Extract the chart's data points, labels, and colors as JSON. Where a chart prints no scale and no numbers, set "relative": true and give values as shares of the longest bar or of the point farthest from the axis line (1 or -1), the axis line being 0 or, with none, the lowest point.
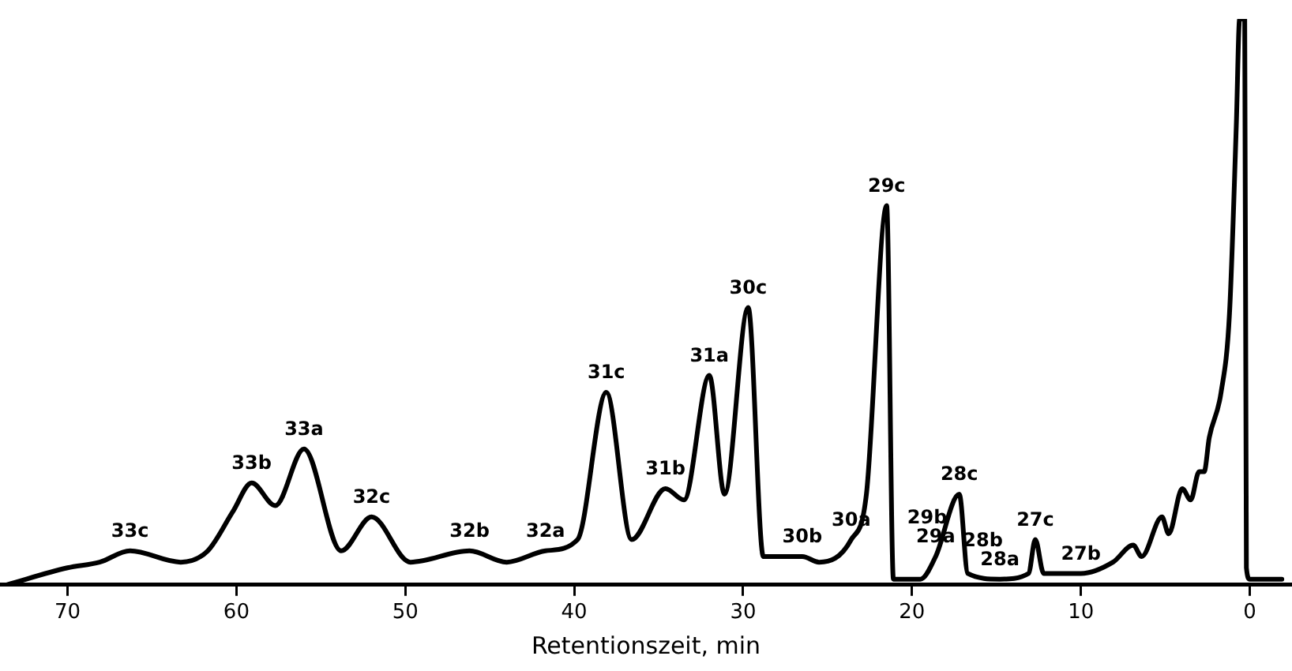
{
  "chart_data": {
    "type": "line",
    "relative": true,
    "xlabel": "Retentionszeit, min",
    "xlim": [
      74,
      -2.5
    ],
    "xticks": [
      70,
      60,
      50,
      40,
      30,
      20,
      10,
      0
    ],
    "grid": false,
    "legend": false,
    "marker": "none",
    "line_style": "solid",
    "series": [
      {
        "color": "#000000",
        "x": [
          73.6,
          70,
          68.1,
          66.3,
          63.3,
          61.7,
          60.2,
          59.1,
          57.7,
          56.0,
          53.8,
          52.0,
          49.7,
          46.2,
          44.0,
          41.7,
          39.8,
          38.1,
          36.6,
          34.6,
          33.5,
          32.0,
          31.1,
          29.7,
          28.8,
          26.5,
          25.5,
          23.6,
          22.7,
          21.5,
          21.1,
          19.5,
          18.6,
          17.2,
          16.7,
          14.8,
          13.1,
          12.7,
          12.2,
          10.0,
          8.1,
          6.9,
          6.4,
          5.2,
          4.8,
          4.0,
          3.5,
          3.0,
          2.7,
          2.4,
          1.7,
          1.2,
          0.8,
          0.6,
          0.3,
          0.2,
          0.0,
          -1.9
        ],
        "values": [
          0.0,
          0.03,
          0.04,
          0.06,
          0.04,
          0.06,
          0.13,
          0.18,
          0.14,
          0.24,
          0.06,
          0.12,
          0.04,
          0.06,
          0.04,
          0.06,
          0.08,
          0.34,
          0.08,
          0.17,
          0.15,
          0.37,
          0.16,
          0.49,
          0.05,
          0.05,
          0.04,
          0.08,
          0.16,
          0.67,
          0.01,
          0.01,
          0.05,
          0.16,
          0.02,
          0.01,
          0.02,
          0.08,
          0.02,
          0.02,
          0.04,
          0.07,
          0.05,
          0.12,
          0.09,
          0.17,
          0.15,
          0.2,
          0.2,
          0.26,
          0.34,
          0.48,
          0.81,
          1.0,
          1.0,
          0.03,
          0.01,
          0.01
        ]
      }
    ],
    "annotations": [
      {
        "text": "33c",
        "x": 66.3,
        "y": 0.06
      },
      {
        "text": "33b",
        "x": 59.1,
        "y": 0.18
      },
      {
        "text": "33a",
        "x": 56.0,
        "y": 0.24
      },
      {
        "text": "32c",
        "x": 52.0,
        "y": 0.12
      },
      {
        "text": "32b",
        "x": 46.2,
        "y": 0.06
      },
      {
        "text": "32a",
        "x": 41.7,
        "y": 0.06
      },
      {
        "text": "31c",
        "x": 38.1,
        "y": 0.34
      },
      {
        "text": "31b",
        "x": 34.6,
        "y": 0.17
      },
      {
        "text": "31a",
        "x": 32.0,
        "y": 0.37
      },
      {
        "text": "30c",
        "x": 29.7,
        "y": 0.49
      },
      {
        "text": "30b",
        "x": 26.5,
        "y": 0.05
      },
      {
        "text": "30a",
        "x": 23.6,
        "y": 0.08
      },
      {
        "text": "29c",
        "x": 21.5,
        "y": 0.67
      },
      {
        "text": "29b",
        "x": 19.1,
        "y": 0.03
      },
      {
        "text": "29a",
        "x": 18.6,
        "y": 0.05
      },
      {
        "text": "28c",
        "x": 17.2,
        "y": 0.16
      },
      {
        "text": "28b",
        "x": 15.8,
        "y": 0.01
      },
      {
        "text": "28a",
        "x": 14.8,
        "y": 0.01
      },
      {
        "text": "27c",
        "x": 12.7,
        "y": 0.08
      },
      {
        "text": "27b",
        "x": 10.0,
        "y": 0.02
      }
    ]
  }
}
